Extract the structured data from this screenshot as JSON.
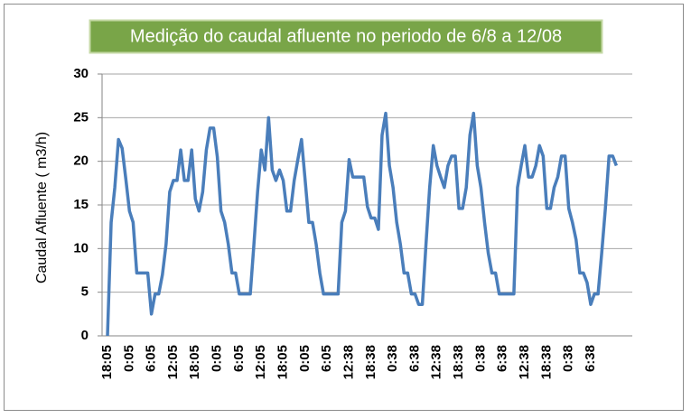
{
  "chart_data": {
    "type": "line",
    "title": "Medição do caudal afluente  no periodo de 6/8 a 12/08",
    "y_label": "Caudal Afluente ( m3/h)",
    "categories": [
      "18:05",
      null,
      null,
      null,
      null,
      null,
      "0:05",
      null,
      null,
      null,
      null,
      null,
      "6:05",
      null,
      null,
      null,
      null,
      null,
      "12:05",
      null,
      null,
      null,
      null,
      null,
      "18:05",
      null,
      null,
      null,
      null,
      null,
      "0:05",
      null,
      null,
      null,
      null,
      null,
      "6:05",
      null,
      null,
      null,
      null,
      null,
      "12:05",
      null,
      null,
      null,
      null,
      null,
      "18:05",
      null,
      null,
      null,
      null,
      null,
      "0:05",
      null,
      null,
      null,
      null,
      null,
      "6:05",
      null,
      null,
      null,
      null,
      null,
      "12:38",
      null,
      null,
      null,
      null,
      null,
      "18:38",
      null,
      null,
      null,
      null,
      null,
      "0:38",
      null,
      null,
      null,
      null,
      null,
      "6:38",
      null,
      null,
      null,
      null,
      null,
      "12:38",
      null,
      null,
      null,
      null,
      null,
      "18:38",
      null,
      null,
      null,
      null,
      null,
      "0:38",
      null,
      null,
      null,
      null,
      null,
      "6:38",
      null,
      null,
      null,
      null,
      null,
      "12:38",
      null,
      null,
      null,
      null,
      null,
      "18:38",
      null,
      null,
      null,
      null,
      null,
      "0:38",
      null,
      null,
      null,
      null,
      null,
      "6:38",
      null,
      null,
      null,
      null,
      null,
      null,
      null
    ],
    "values": [
      0,
      13,
      17,
      22.5,
      21.5,
      18,
      14.3,
      13,
      7.2,
      7.2,
      7.2,
      7.2,
      2.5,
      4.8,
      4.8,
      7,
      10.5,
      16.5,
      17.8,
      17.8,
      21.3,
      17.8,
      17.8,
      21.3,
      15.7,
      14.3,
      16.5,
      21.3,
      23.8,
      23.8,
      20.5,
      14.3,
      13,
      10.5,
      7.2,
      7.2,
      4.8,
      4.8,
      4.8,
      4.8,
      10.5,
      16.5,
      21.3,
      19,
      25,
      19,
      17.8,
      19,
      17.8,
      14.3,
      14.3,
      17.8,
      20.2,
      22.5,
      17.8,
      13,
      13,
      10.5,
      7.2,
      4.8,
      4.8,
      4.8,
      4.8,
      4.8,
      13,
      14.3,
      20.2,
      18.2,
      18.2,
      18.2,
      18.2,
      14.8,
      13.5,
      13.5,
      12.2,
      23,
      25.5,
      19.5,
      17,
      13,
      10.5,
      7.2,
      7.2,
      4.8,
      4.8,
      3.6,
      3.6,
      10.5,
      17,
      21.8,
      19.5,
      18.2,
      17,
      19.5,
      20.6,
      20.6,
      14.6,
      14.6,
      17,
      23,
      25.5,
      19.5,
      17,
      13,
      9.5,
      7.2,
      7.2,
      4.8,
      4.8,
      4.8,
      4.8,
      4.8,
      17,
      19.5,
      21.8,
      18.2,
      18.2,
      19.5,
      21.8,
      20.6,
      14.6,
      14.6,
      17,
      18.2,
      20.6,
      20.6,
      14.6,
      13,
      11,
      7.2,
      7.2,
      6.1,
      3.6,
      4.8,
      4.8,
      9.5,
      14.6,
      20.6,
      20.6,
      19.5
    ],
    "color": "#4a7ebb",
    "ylim": [
      0,
      30
    ],
    "yticks": [
      0,
      5,
      10,
      15,
      20,
      25,
      30
    ],
    "grid": true
  }
}
